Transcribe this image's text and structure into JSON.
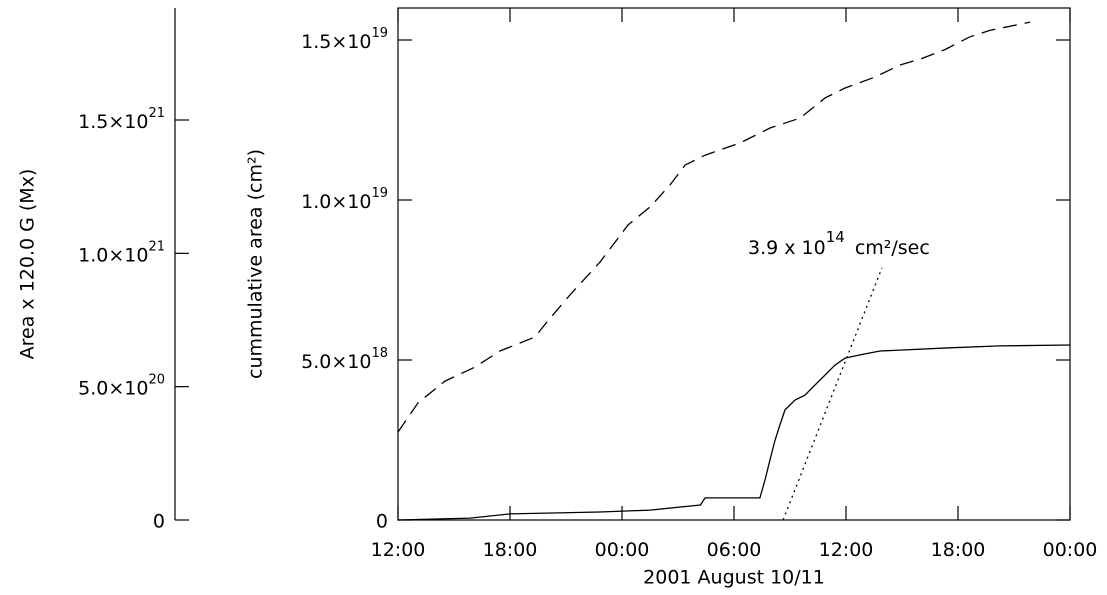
{
  "chart_data": {
    "type": "line",
    "xlabel": "2001 August 10/11",
    "ylabel": "cummulative area (cm²)",
    "y2label": "Area x 120.0 G (Mx)",
    "xlim": [
      0,
      36
    ],
    "xticks": [
      {
        "value": 0,
        "label": "12:00"
      },
      {
        "value": 6,
        "label": "18:00"
      },
      {
        "value": 12,
        "label": "00:00"
      },
      {
        "value": 18,
        "label": "06:00"
      },
      {
        "value": 24,
        "label": "12:00"
      },
      {
        "value": 30,
        "label": "18:00"
      },
      {
        "value": 36,
        "label": "00:00"
      }
    ],
    "ylim": [
      0,
      1.6e+19
    ],
    "yticks": [
      0,
      {
        "value": 5e+18,
        "label": "5.0×10",
        "sup": "18"
      },
      {
        "value": 1e+19,
        "label": "1.0×10",
        "sup": "19"
      },
      {
        "value": 1.5e+19,
        "label": "1.5×10",
        "sup": "19"
      }
    ],
    "y2lim": [
      0,
      1.92e+21
    ],
    "y2ticks": [
      0,
      {
        "value": 5e+20,
        "label": "5.0×10",
        "sup": "20"
      },
      {
        "value": 1e+21,
        "label": "1.0×10",
        "sup": "21"
      },
      {
        "value": 1.5e+21,
        "label": "1.5×10",
        "sup": "21"
      }
    ],
    "series": [
      {
        "style": "dashed",
        "color": "#000000",
        "x": [
          0,
          1.07,
          2.52,
          4.13,
          5.46,
          7.34,
          7.98,
          9.21,
          10.82,
          12.32,
          13.5,
          14.57,
          15.38,
          16.45,
          18.32,
          19.93,
          21.54,
          22.88,
          23.95,
          25.55,
          26.89,
          27.96,
          29.3,
          30.64,
          31.71,
          33.86
        ],
        "values": [
          2.75e+18,
          3.66e+18,
          4.34e+18,
          4.78e+18,
          5.28e+18,
          5.72e+18,
          6.19e+18,
          7.03e+18,
          8.06e+18,
          9.22e+18,
          9.78e+18,
          1.047e+19,
          1.109e+19,
          1.14e+19,
          1.178e+19,
          1.225e+19,
          1.256e+19,
          1.319e+19,
          1.35e+19,
          1.384e+19,
          1.422e+19,
          1.44e+19,
          1.47e+19,
          1.51e+19,
          1.53e+19,
          1.556e+19
        ]
      },
      {
        "style": "solid",
        "color": "#000000",
        "x": [
          0,
          3.86,
          6,
          10.8,
          13.5,
          16.2,
          16.45,
          19.39,
          19.66,
          19.93,
          20.2,
          20.46,
          20.73,
          21.27,
          21.8,
          22.34,
          22.88,
          23.41,
          23.95,
          24.75,
          25.82,
          26.89,
          29.57,
          32.25,
          36
        ],
        "values": [
          0,
          6e+16,
          1.9e+17,
          2.5e+17,
          3.1e+17,
          4.7e+17,
          6.9e+17,
          6.9e+17,
          1.25e+18,
          1.88e+18,
          2.5e+18,
          2.97e+18,
          3.44e+18,
          3.75e+18,
          3.9e+18,
          4.22e+18,
          4.53e+18,
          4.84e+18,
          5.06e+18,
          5.16e+18,
          5.28e+18,
          5.31e+18,
          5.38e+18,
          5.44e+18,
          5.47e+18
        ]
      },
      {
        "style": "dotted",
        "color": "#000000",
        "x": [
          20.63,
          25.93
        ],
        "values": [
          0,
          7.88e+18
        ]
      }
    ],
    "annotation": {
      "text": "3.9 x 10",
      "sup": "14",
      "after": "cm²/sec"
    }
  }
}
